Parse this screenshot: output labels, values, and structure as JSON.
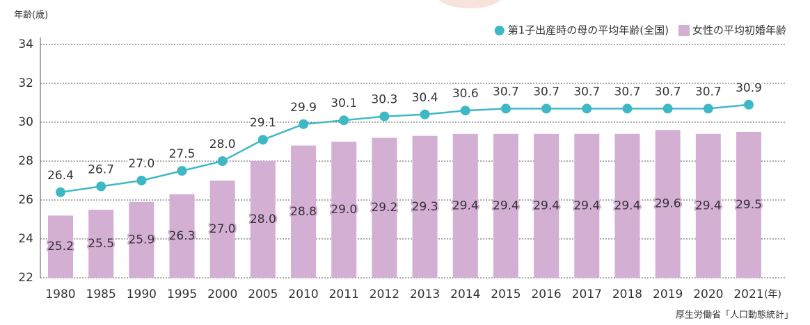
{
  "chart_data": {
    "type": "bar_line",
    "y_axis_label": "年齢(歳)",
    "x_unit": "(年)",
    "source": "厚生労働省「人口動態統計」",
    "categories": [
      "1980",
      "1985",
      "1990",
      "1995",
      "2000",
      "2005",
      "2010",
      "2011",
      "2012",
      "2013",
      "2014",
      "2015",
      "2016",
      "2017",
      "2018",
      "2019",
      "2020",
      "2021"
    ],
    "series": [
      {
        "name": "第1子出産時の母の平均年齢(全国)",
        "type": "line",
        "color": "#3fb8c6",
        "values": [
          26.4,
          26.7,
          27.0,
          27.5,
          28.0,
          29.1,
          29.9,
          30.1,
          30.3,
          30.4,
          30.6,
          30.7,
          30.7,
          30.7,
          30.7,
          30.7,
          30.7,
          30.9
        ],
        "value_labels": [
          "26.4",
          "26.7",
          "27.0",
          "27.5",
          "28.0",
          "29.1",
          "29.9",
          "30.1",
          "30.3",
          "30.4",
          "30.6",
          "30.7",
          "30.7",
          "30.7",
          "30.7",
          "30.7",
          "30.7",
          "30.9"
        ]
      },
      {
        "name": "女性の平均初婚年齢",
        "type": "bar",
        "color": "#d4afd4",
        "values": [
          25.2,
          25.5,
          25.9,
          26.3,
          27.0,
          28.0,
          28.8,
          29.0,
          29.2,
          29.3,
          29.4,
          29.4,
          29.4,
          29.4,
          29.4,
          29.6,
          29.4,
          29.5
        ],
        "value_labels": [
          "25.2",
          "25.5",
          "25.9",
          "26.3",
          "27.0",
          "28.0",
          "28.8",
          "29.0",
          "29.2",
          "29.3",
          "29.4",
          "29.4",
          "29.4",
          "29.4",
          "29.4",
          "29.6",
          "29.4",
          "29.5"
        ]
      }
    ],
    "ylim": [
      22,
      34
    ],
    "yticks": [
      22,
      24,
      26,
      28,
      30,
      32,
      34
    ],
    "grid": true,
    "legend": "upper right"
  }
}
